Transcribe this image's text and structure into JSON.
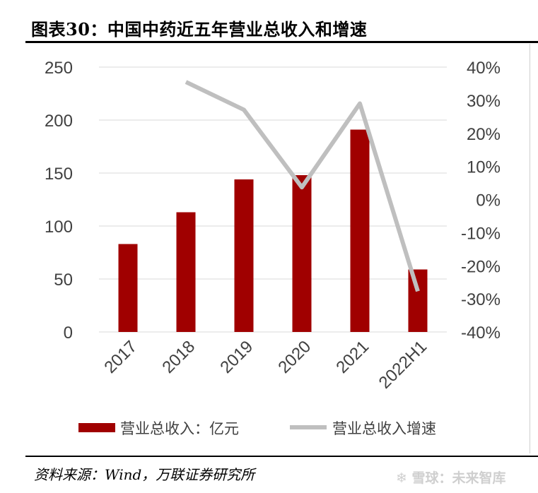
{
  "header": {
    "title": "图表30：中国中药近五年营业总收入和增速"
  },
  "footer": {
    "source": "资料来源：Wind，万联证券研究所",
    "watermark": "❄ 雪球：未来智库"
  },
  "chart_data": {
    "type": "bar",
    "categories": [
      "2017",
      "2018",
      "2019",
      "2020",
      "2021",
      "2022H1"
    ],
    "series": [
      {
        "name": "营业总收入：亿元",
        "type": "bar",
        "axis": "left",
        "color": "#a00000",
        "values": [
          83,
          113,
          144,
          148,
          191,
          59
        ]
      },
      {
        "name": "营业总收入增速",
        "type": "line",
        "axis": "right",
        "color": "#bfbfbf",
        "values": [
          null,
          35.5,
          27.1,
          3.7,
          29.0,
          -27.7
        ]
      }
    ],
    "ylim_left": [
      0,
      250
    ],
    "yticks_left": [
      "0",
      "50",
      "100",
      "150",
      "200",
      "250"
    ],
    "ylim_right": [
      -40,
      40
    ],
    "yticks_right": [
      "-40%",
      "-30%",
      "-20%",
      "-10%",
      "0%",
      "10%",
      "20%",
      "30%",
      "40%"
    ],
    "grid": true,
    "legend_position": "bottom"
  }
}
